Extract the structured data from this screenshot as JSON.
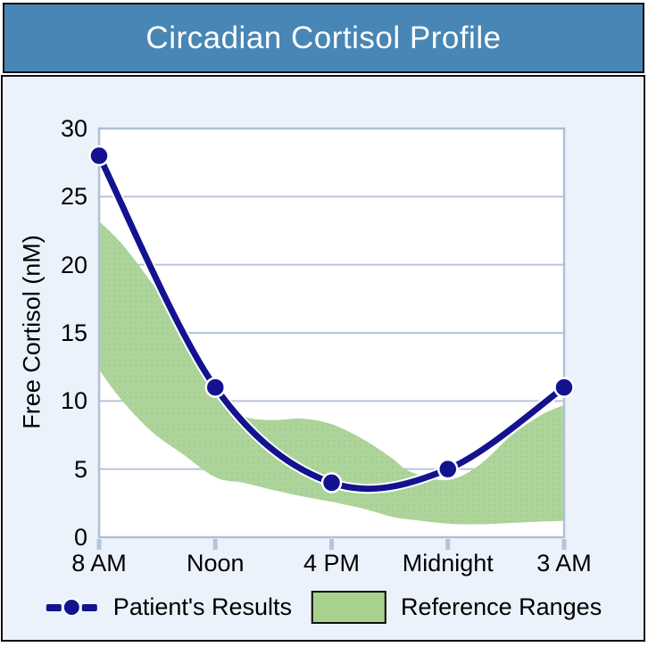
{
  "window": {
    "title": "Circadian Cortisol Profile"
  },
  "colors": {
    "title_bar": "#4886b5",
    "panel_bg": "#ebf2fc",
    "plot_bg": "#ffffff",
    "grid": "#b6c4d8",
    "plot_border": "#b0c0d5",
    "tick": "#b6c4d8",
    "line": "#13138f",
    "marker": "#13138f",
    "marker_ring": "#ffffff",
    "band": "#add49a",
    "band_dot": "#a2cc8b",
    "swatch": "#a9d18e",
    "axis_text": "#000000"
  },
  "chart_data": {
    "type": "line",
    "title": "Circadian Cortisol Profile",
    "xlabel": "",
    "ylabel": "Free Cortisol (nM)",
    "categories": [
      "8 AM",
      "Noon",
      "4 PM",
      "Midnight",
      "3 AM"
    ],
    "y_ticks": [
      0,
      5,
      10,
      15,
      20,
      25,
      30
    ],
    "ylim": [
      0,
      30
    ],
    "grid": "horizontal-only",
    "legend_position": "bottom",
    "series": [
      {
        "name": "Patient's Results",
        "type": "line",
        "values": [
          28,
          11,
          4,
          5,
          11
        ]
      },
      {
        "name": "Reference Ranges",
        "type": "band",
        "x": [
          0,
          0.2,
          0.46,
          0.72,
          1.0,
          1.24,
          1.48,
          1.75,
          2.0,
          2.27,
          2.52,
          2.68,
          3.0,
          3.27,
          3.55,
          3.81,
          4.0
        ],
        "upper": [
          23.2,
          21.5,
          18.6,
          15.6,
          10.4,
          8.9,
          8.6,
          8.7,
          8.3,
          7.2,
          5.8,
          4.8,
          4.2,
          5.3,
          7.5,
          9.0,
          9.7
        ],
        "lower": [
          12.3,
          10.0,
          7.7,
          6.1,
          4.4,
          4.0,
          3.5,
          3.0,
          2.6,
          2.1,
          1.5,
          1.3,
          1.0,
          0.95,
          1.05,
          1.15,
          1.2
        ]
      }
    ]
  }
}
